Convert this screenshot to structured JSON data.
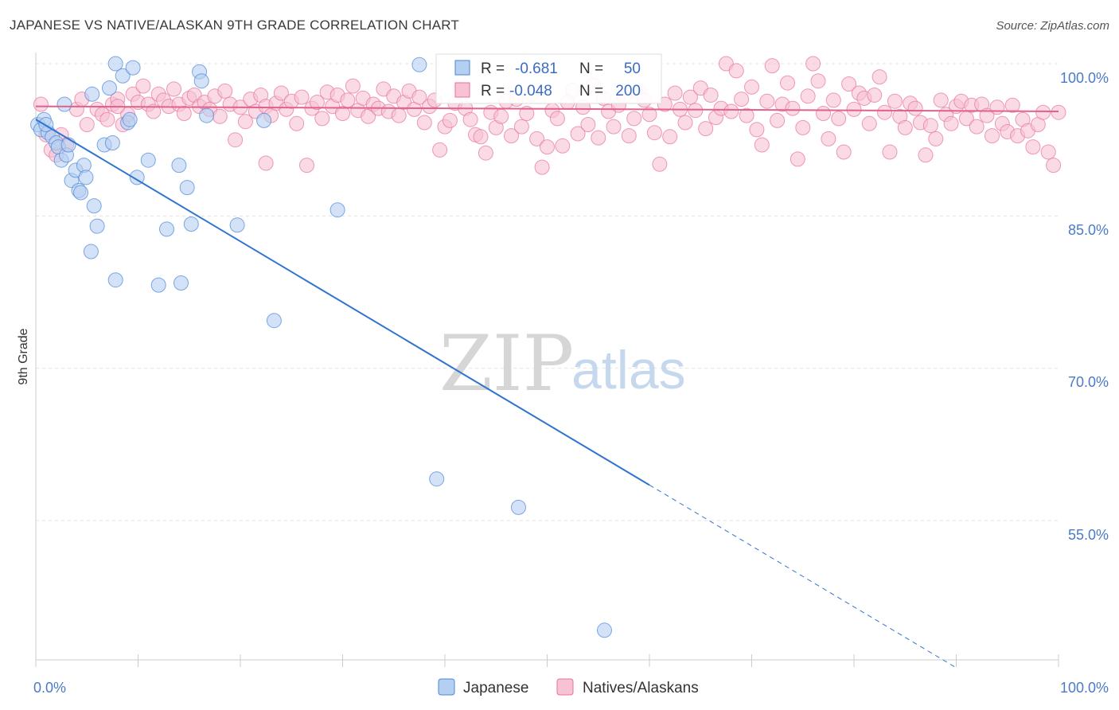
{
  "header": {
    "title": "JAPANESE VS NATIVE/ALASKAN 9TH GRADE CORRELATION CHART",
    "source": "Source: ZipAtlas.com"
  },
  "watermark": {
    "zip": "ZIP",
    "atlas": "atlas"
  },
  "colors": {
    "japanese": "#4a86d8",
    "japanese_fill": "#b5cff0",
    "natives": "#e8729a",
    "natives_fill": "#f7c2d3",
    "axis_tick_text": "#4a7bc8",
    "grid": "#e3e3e3"
  },
  "legend": {
    "rows": [
      {
        "r_label": "R =",
        "r_value": "-0.681",
        "n_label": "N =",
        "n_value": "50"
      },
      {
        "r_label": "R =",
        "r_value": "-0.048",
        "n_label": "N =",
        "n_value": "200"
      }
    ]
  },
  "bottom_legend": {
    "items": [
      "Japanese",
      "Natives/Alaskans"
    ]
  },
  "chart_data": {
    "type": "scatter",
    "ylabel": "9th Grade",
    "x_ticks": [
      "0.0%",
      "100.0%"
    ],
    "y_ticks": [
      "100.0%",
      "85.0%",
      "70.0%",
      "55.0%"
    ],
    "xlim": [
      0,
      100
    ],
    "ylim": [
      42,
      103
    ],
    "grid": true,
    "legend_position": "top-center",
    "series": [
      {
        "name": "Japanese",
        "trend": {
          "x0": 0,
          "y0": 94.5,
          "x1": 60,
          "y1": 58.5,
          "dashed_to_x": 90
        },
        "points": [
          [
            0.2,
            94
          ],
          [
            0.5,
            93.5
          ],
          [
            0.8,
            94.5
          ],
          [
            1.2,
            93.2
          ],
          [
            1.6,
            92.8
          ],
          [
            2,
            92.2
          ],
          [
            2.2,
            91.8
          ],
          [
            2.5,
            90.5
          ],
          [
            2.8,
            96
          ],
          [
            3,
            91
          ],
          [
            3.2,
            92
          ],
          [
            3.5,
            88.5
          ],
          [
            3.9,
            89.5
          ],
          [
            4.2,
            87.5
          ],
          [
            4.4,
            87.3
          ],
          [
            4.7,
            90
          ],
          [
            4.9,
            88.8
          ],
          [
            5.5,
            97
          ],
          [
            5.7,
            86
          ],
          [
            6,
            84
          ],
          [
            5.4,
            81.5
          ],
          [
            6.7,
            92
          ],
          [
            7.2,
            97.6
          ],
          [
            7.5,
            92.2
          ],
          [
            7.8,
            100
          ],
          [
            7.8,
            78.7
          ],
          [
            8.5,
            98.8
          ],
          [
            9,
            94.2
          ],
          [
            9.2,
            94.5
          ],
          [
            9.5,
            99.6
          ],
          [
            9.9,
            88.8
          ],
          [
            11,
            90.5
          ],
          [
            12,
            78.2
          ],
          [
            12.8,
            83.7
          ],
          [
            14,
            90
          ],
          [
            14.2,
            78.4
          ],
          [
            14.8,
            87.8
          ],
          [
            15.2,
            84.2
          ],
          [
            16,
            99.2
          ],
          [
            16.2,
            98.3
          ],
          [
            16.7,
            94.9
          ],
          [
            19.7,
            84.1
          ],
          [
            22.3,
            94.4
          ],
          [
            23.3,
            74.7
          ],
          [
            29.5,
            85.6
          ],
          [
            37.5,
            99.9
          ],
          [
            39.2,
            59.1
          ],
          [
            47.2,
            56.3
          ],
          [
            55.6,
            44.2
          ],
          [
            1,
            94
          ]
        ]
      },
      {
        "name": "Natives/Alaskans",
        "trend": {
          "x0": 0,
          "y0": 95.8,
          "x1": 100,
          "y1": 95.3
        },
        "points": [
          [
            0.5,
            96
          ],
          [
            1,
            93
          ],
          [
            1.5,
            91.5
          ],
          [
            2,
            91
          ],
          [
            2.5,
            93
          ],
          [
            3,
            92
          ],
          [
            4,
            95.5
          ],
          [
            4.5,
            96.5
          ],
          [
            5,
            94
          ],
          [
            6,
            95.5
          ],
          [
            6.5,
            95
          ],
          [
            7,
            94.5
          ],
          [
            7.5,
            96
          ],
          [
            8,
            96.5
          ],
          [
            8.5,
            94
          ],
          [
            9,
            95
          ],
          [
            9.5,
            97
          ],
          [
            10,
            96.2
          ],
          [
            10.5,
            97.8
          ],
          [
            11,
            96
          ],
          [
            11.5,
            95.3
          ],
          [
            12,
            97
          ],
          [
            12.5,
            96.4
          ],
          [
            13,
            95.8
          ],
          [
            13.5,
            97.5
          ],
          [
            14,
            96
          ],
          [
            14.5,
            95.1
          ],
          [
            15,
            96.6
          ],
          [
            15.5,
            96.9
          ],
          [
            16,
            95.8
          ],
          [
            16.5,
            96.2
          ],
          [
            17,
            95.5
          ],
          [
            17.5,
            96.8
          ],
          [
            18,
            94.8
          ],
          [
            18.5,
            97.3
          ],
          [
            19,
            96
          ],
          [
            19.5,
            92.5
          ],
          [
            20,
            95.7
          ],
          [
            20.5,
            94.3
          ],
          [
            21,
            96.5
          ],
          [
            21.5,
            95.3
          ],
          [
            22,
            96.9
          ],
          [
            22.5,
            95.8
          ],
          [
            23,
            94.9
          ],
          [
            23.5,
            96.1
          ],
          [
            24,
            97.1
          ],
          [
            24.5,
            95.5
          ],
          [
            25,
            96.3
          ],
          [
            25.5,
            94.1
          ],
          [
            26,
            96.7
          ],
          [
            26.5,
            90
          ],
          [
            27,
            95.6
          ],
          [
            27.5,
            96.2
          ],
          [
            28,
            94.6
          ],
          [
            28.5,
            97.2
          ],
          [
            29,
            95.8
          ],
          [
            29.5,
            96.9
          ],
          [
            30,
            95.1
          ],
          [
            30.5,
            96.4
          ],
          [
            31,
            97.8
          ],
          [
            31.5,
            95.4
          ],
          [
            32,
            96.6
          ],
          [
            32.5,
            94.8
          ],
          [
            33,
            96
          ],
          [
            33.5,
            95.6
          ],
          [
            34,
            97.5
          ],
          [
            34.5,
            95.3
          ],
          [
            35,
            96.8
          ],
          [
            35.5,
            94.9
          ],
          [
            36,
            96.2
          ],
          [
            36.5,
            97.3
          ],
          [
            37,
            95.5
          ],
          [
            37.5,
            96.7
          ],
          [
            38,
            94.2
          ],
          [
            38.5,
            95.8
          ],
          [
            39,
            96.4
          ],
          [
            39.5,
            91.5
          ],
          [
            40,
            93.8
          ],
          [
            40.5,
            94.4
          ],
          [
            41,
            96.1
          ],
          [
            41.5,
            97.5
          ],
          [
            42,
            95.6
          ],
          [
            42.5,
            94.5
          ],
          [
            43,
            93
          ],
          [
            43.5,
            92.8
          ],
          [
            44,
            91.2
          ],
          [
            44.5,
            95.2
          ],
          [
            45,
            93.7
          ],
          [
            45.5,
            94.8
          ],
          [
            46,
            96.3
          ],
          [
            46.5,
            92.9
          ],
          [
            47,
            96.5
          ],
          [
            47.5,
            93.8
          ],
          [
            48,
            95.1
          ],
          [
            48.5,
            97
          ],
          [
            49,
            92.6
          ],
          [
            49.5,
            89.8
          ],
          [
            50,
            91.8
          ],
          [
            50.5,
            95.4
          ],
          [
            51,
            94.6
          ],
          [
            51.5,
            91.9
          ],
          [
            52,
            96.2
          ],
          [
            52.5,
            97.4
          ],
          [
            53,
            93.1
          ],
          [
            53.5,
            95.7
          ],
          [
            54,
            94
          ],
          [
            54.5,
            97.9
          ],
          [
            55,
            92.7
          ],
          [
            55.5,
            96.6
          ],
          [
            56,
            95.3
          ],
          [
            56.5,
            93.8
          ],
          [
            57,
            95.9
          ],
          [
            57.5,
            96.8
          ],
          [
            58,
            92.9
          ],
          [
            58.5,
            94.6
          ],
          [
            59,
            97.2
          ],
          [
            59.5,
            96.4
          ],
          [
            60,
            95
          ],
          [
            60.5,
            93.2
          ],
          [
            61,
            90.1
          ],
          [
            61.5,
            96
          ],
          [
            62,
            92.8
          ],
          [
            62.5,
            97.1
          ],
          [
            63,
            95.5
          ],
          [
            63.5,
            94.2
          ],
          [
            64,
            96.7
          ],
          [
            64.5,
            95.4
          ],
          [
            65,
            97.6
          ],
          [
            65.5,
            93.6
          ],
          [
            66,
            96.9
          ],
          [
            66.5,
            94.7
          ],
          [
            67,
            95.6
          ],
          [
            67.5,
            100
          ],
          [
            68,
            95.3
          ],
          [
            68.5,
            99.3
          ],
          [
            69,
            96.5
          ],
          [
            69.5,
            94.9
          ],
          [
            70,
            97.7
          ],
          [
            70.5,
            93.5
          ],
          [
            71,
            92
          ],
          [
            71.5,
            96.3
          ],
          [
            72,
            99.8
          ],
          [
            72.5,
            94.4
          ],
          [
            73,
            96
          ],
          [
            73.5,
            98.1
          ],
          [
            74,
            95.6
          ],
          [
            74.5,
            90.6
          ],
          [
            75,
            93.7
          ],
          [
            75.5,
            96.8
          ],
          [
            76,
            100
          ],
          [
            76.5,
            98.3
          ],
          [
            77,
            95.1
          ],
          [
            77.5,
            92.6
          ],
          [
            78,
            96.4
          ],
          [
            78.5,
            94.6
          ],
          [
            79,
            91.3
          ],
          [
            79.5,
            98
          ],
          [
            80,
            95.5
          ],
          [
            80.5,
            97.1
          ],
          [
            81,
            96.6
          ],
          [
            81.5,
            94.1
          ],
          [
            82,
            96.9
          ],
          [
            82.5,
            98.7
          ],
          [
            83,
            95.2
          ],
          [
            83.5,
            91.3
          ],
          [
            84,
            96.3
          ],
          [
            84.5,
            94.8
          ],
          [
            85,
            93.7
          ],
          [
            85.5,
            96.1
          ],
          [
            86,
            95.6
          ],
          [
            86.5,
            94.2
          ],
          [
            87,
            91
          ],
          [
            87.5,
            93.9
          ],
          [
            88,
            92.6
          ],
          [
            88.5,
            96.4
          ],
          [
            89,
            95
          ],
          [
            89.5,
            94.1
          ],
          [
            90,
            95.8
          ],
          [
            90.5,
            96.3
          ],
          [
            91,
            94.6
          ],
          [
            91.5,
            95.9
          ],
          [
            92,
            93.8
          ],
          [
            92.5,
            96
          ],
          [
            93,
            94.9
          ],
          [
            93.5,
            92.9
          ],
          [
            94,
            95.7
          ],
          [
            94.5,
            94.1
          ],
          [
            95,
            93.3
          ],
          [
            95.5,
            95.9
          ],
          [
            96,
            92.9
          ],
          [
            96.5,
            94.5
          ],
          [
            97,
            93.4
          ],
          [
            97.5,
            91.8
          ],
          [
            98,
            94
          ],
          [
            98.5,
            95.2
          ],
          [
            99,
            91.3
          ],
          [
            99.5,
            90
          ],
          [
            100,
            95.2
          ],
          [
            22.5,
            90.2
          ],
          [
            8,
            95.8
          ]
        ]
      }
    ]
  }
}
